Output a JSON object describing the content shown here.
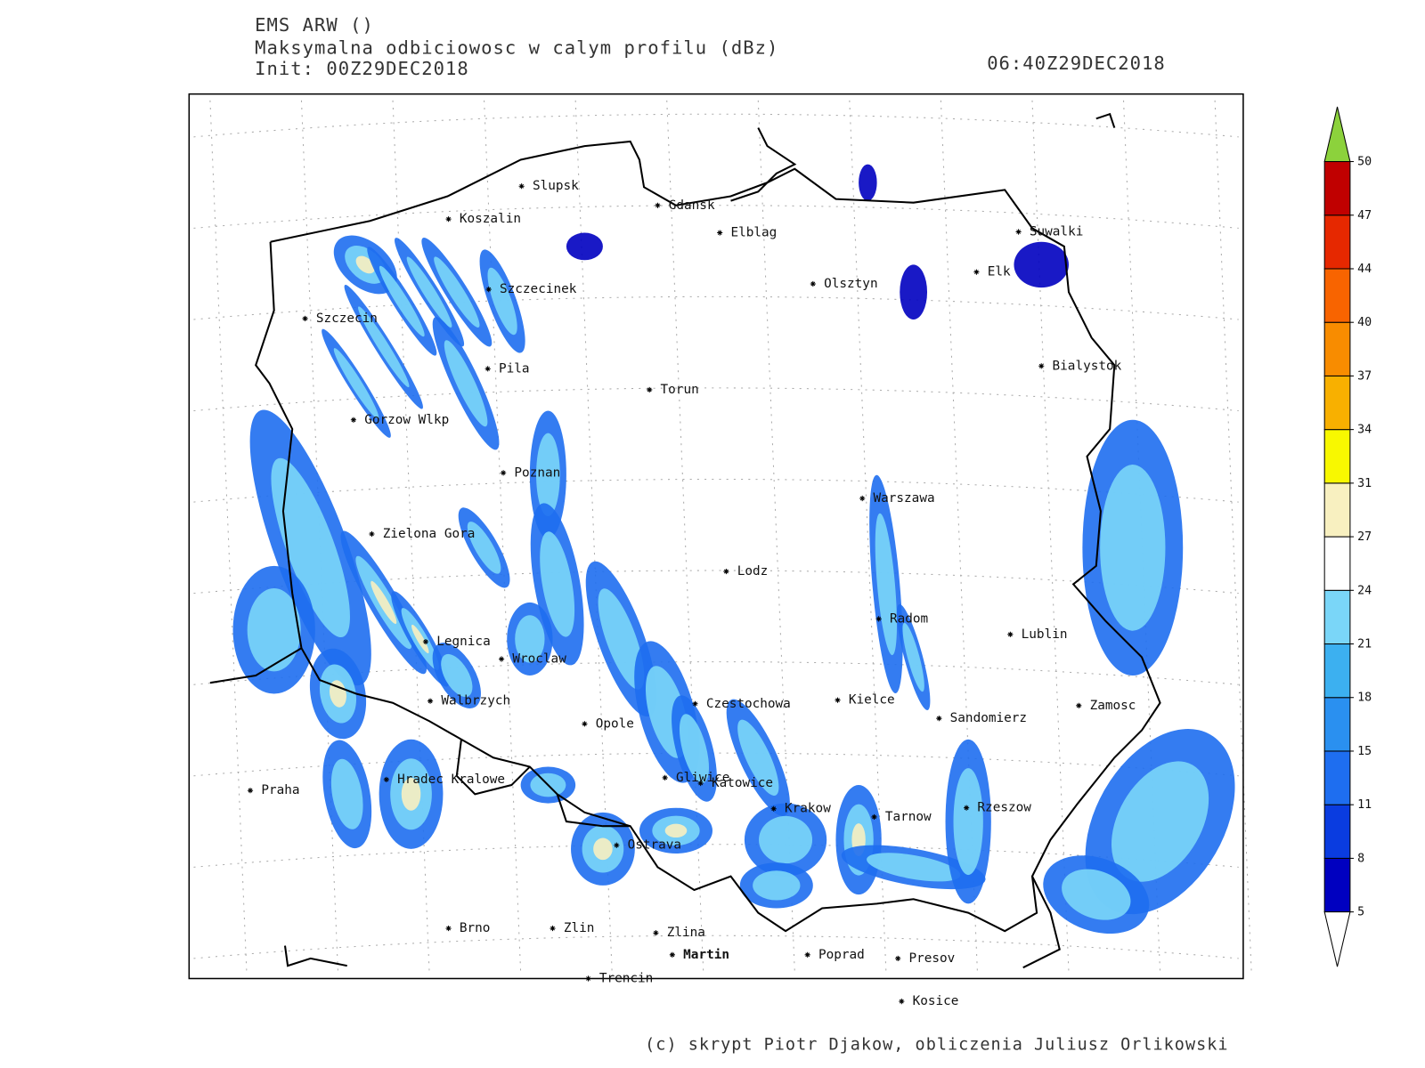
{
  "header": {
    "model": "EMS ARW ()",
    "field": "Maksymalna odbiciowosc w calym profilu (dBz)",
    "init": "Init: 00Z29DEC2018",
    "valid": "06:40Z29DEC2018"
  },
  "cities": [
    {
      "name": "Slupsk"
    },
    {
      "name": "Koszalin"
    },
    {
      "name": "Gdansk"
    },
    {
      "name": "Elblag"
    },
    {
      "name": "Suwalki"
    },
    {
      "name": "Elk"
    },
    {
      "name": "Szczecinek"
    },
    {
      "name": "Olsztyn"
    },
    {
      "name": "Szczecin"
    },
    {
      "name": "Bialystok"
    },
    {
      "name": "Pila"
    },
    {
      "name": "Torun"
    },
    {
      "name": "Gorzow Wlkp"
    },
    {
      "name": "Poznan"
    },
    {
      "name": "Warszawa"
    },
    {
      "name": "Zielona Gora"
    },
    {
      "name": "Lodz"
    },
    {
      "name": "Radom"
    },
    {
      "name": "Lublin"
    },
    {
      "name": "Legnica"
    },
    {
      "name": "Wroclaw"
    },
    {
      "name": "Walbrzych"
    },
    {
      "name": "Czestochowa"
    },
    {
      "name": "Kielce"
    },
    {
      "name": "Zamosc"
    },
    {
      "name": "Opole"
    },
    {
      "name": "Sandomierz"
    },
    {
      "name": "Praha"
    },
    {
      "name": "Hradec Kralowe"
    },
    {
      "name": "Gliwice"
    },
    {
      "name": "Katowice"
    },
    {
      "name": "Krakow"
    },
    {
      "name": "Tarnow"
    },
    {
      "name": "Rzeszow"
    },
    {
      "name": "Ostrava"
    },
    {
      "name": "Brno"
    },
    {
      "name": "Zlin"
    },
    {
      "name": "Zlina"
    },
    {
      "name": "Martin"
    },
    {
      "name": "Poprad"
    },
    {
      "name": "Presov"
    },
    {
      "name": "Trencin"
    },
    {
      "name": "Kosice"
    }
  ],
  "colorbar": {
    "levels": [
      5,
      8,
      11,
      15,
      18,
      21,
      24,
      27,
      31,
      34,
      37,
      40,
      44,
      47,
      50
    ],
    "colors": [
      "#0000c0",
      "#0a3ce0",
      "#1e6ef0",
      "#2a90f0",
      "#3cb0f0",
      "#7ad6f8",
      "#ffffff",
      "#f8f0c0",
      "#f8f800",
      "#f8b000",
      "#f88c00",
      "#f86400",
      "#e62800",
      "#c00000"
    ],
    "over_color": "#8cd23c",
    "under_color": "#ffffff"
  },
  "footer": "(c) skrypt Piotr Djakow, obliczenia Juliusz Orlikowski"
}
